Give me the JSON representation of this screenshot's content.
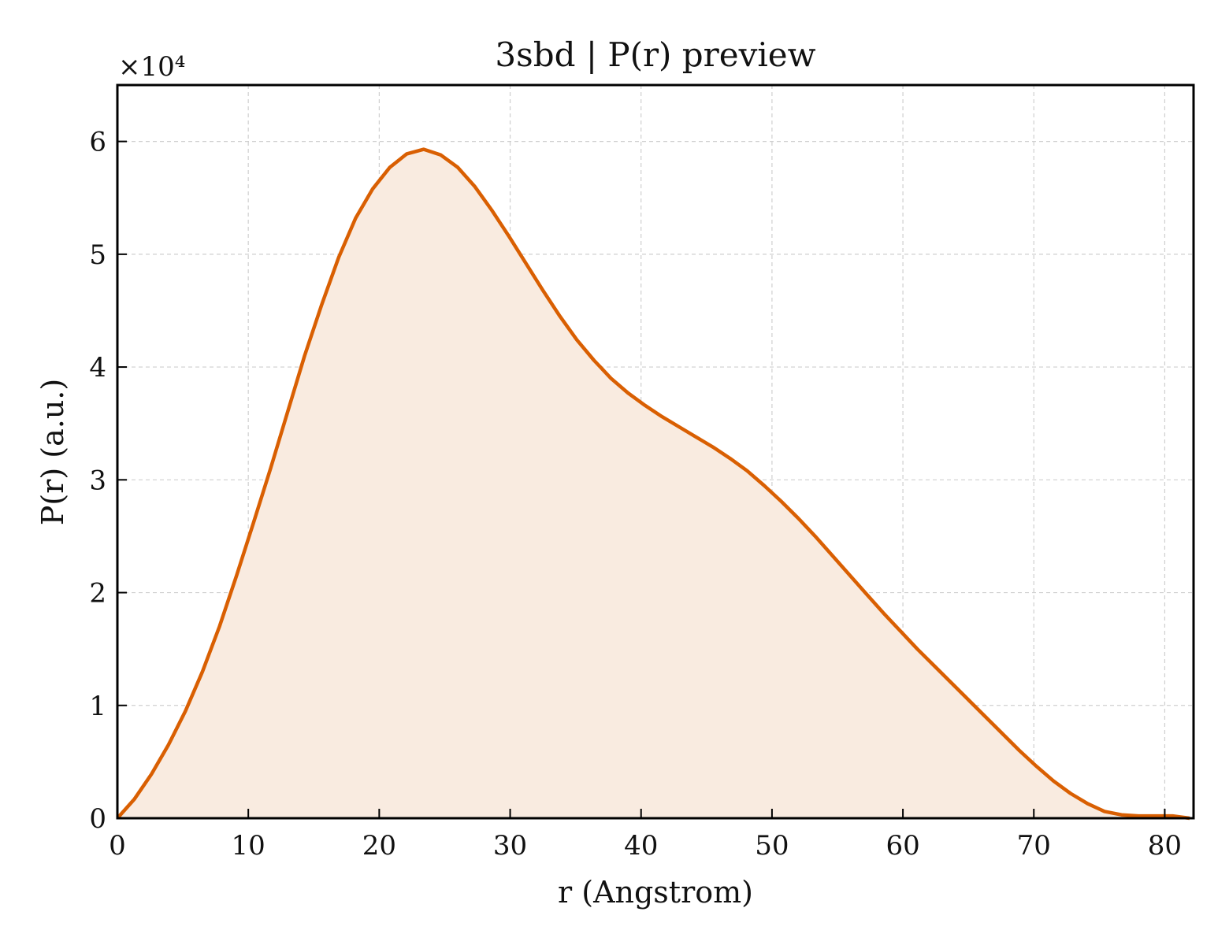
{
  "chart_data": {
    "type": "area",
    "title": "3sbd | P(r) preview",
    "xlabel": "r (Angstrom)",
    "ylabel": "P(r) (a.u.)",
    "y_multiplier_label": "×10⁴",
    "xlim": [
      0,
      82.2
    ],
    "ylim": [
      0,
      6.5
    ],
    "xticks": [
      0,
      10,
      20,
      30,
      40,
      50,
      60,
      70,
      80
    ],
    "yticks": [
      0,
      1,
      2,
      3,
      4,
      5,
      6
    ],
    "grid": true,
    "line_color": "#d95f02",
    "fill_color": "#f9ebe0",
    "series": [
      {
        "x": [
          0,
          1.3,
          2.6,
          3.9,
          5.2,
          6.5,
          7.8,
          9.1,
          10.4,
          11.7,
          13.0,
          14.3,
          15.6,
          16.9,
          18.2,
          19.5,
          20.8,
          22.1,
          23.4,
          24.7,
          26.0,
          27.3,
          28.6,
          29.9,
          31.2,
          32.5,
          33.8,
          35.1,
          36.4,
          37.7,
          39.0,
          40.3,
          41.6,
          42.9,
          44.2,
          45.5,
          46.8,
          48.1,
          49.4,
          50.7,
          52.0,
          53.3,
          54.6,
          55.9,
          57.2,
          58.5,
          59.8,
          61.1,
          62.4,
          63.7,
          65.0,
          66.3,
          67.6,
          68.9,
          70.2,
          71.5,
          72.8,
          74.1,
          75.4,
          76.7,
          78.0,
          79.3,
          80.6,
          81.9
        ],
        "y": [
          0,
          0.17,
          0.39,
          0.65,
          0.95,
          1.3,
          1.7,
          2.15,
          2.62,
          3.1,
          3.6,
          4.1,
          4.55,
          4.97,
          5.32,
          5.58,
          5.77,
          5.89,
          5.93,
          5.88,
          5.77,
          5.6,
          5.39,
          5.16,
          4.92,
          4.68,
          4.45,
          4.24,
          4.06,
          3.9,
          3.77,
          3.66,
          3.56,
          3.47,
          3.38,
          3.29,
          3.19,
          3.08,
          2.95,
          2.81,
          2.66,
          2.5,
          2.33,
          2.16,
          1.99,
          1.82,
          1.66,
          1.5,
          1.35,
          1.2,
          1.05,
          0.9,
          0.75,
          0.6,
          0.46,
          0.33,
          0.22,
          0.13,
          0.06,
          0.03,
          0.02,
          0.02,
          0.02,
          0.0
        ]
      }
    ]
  }
}
